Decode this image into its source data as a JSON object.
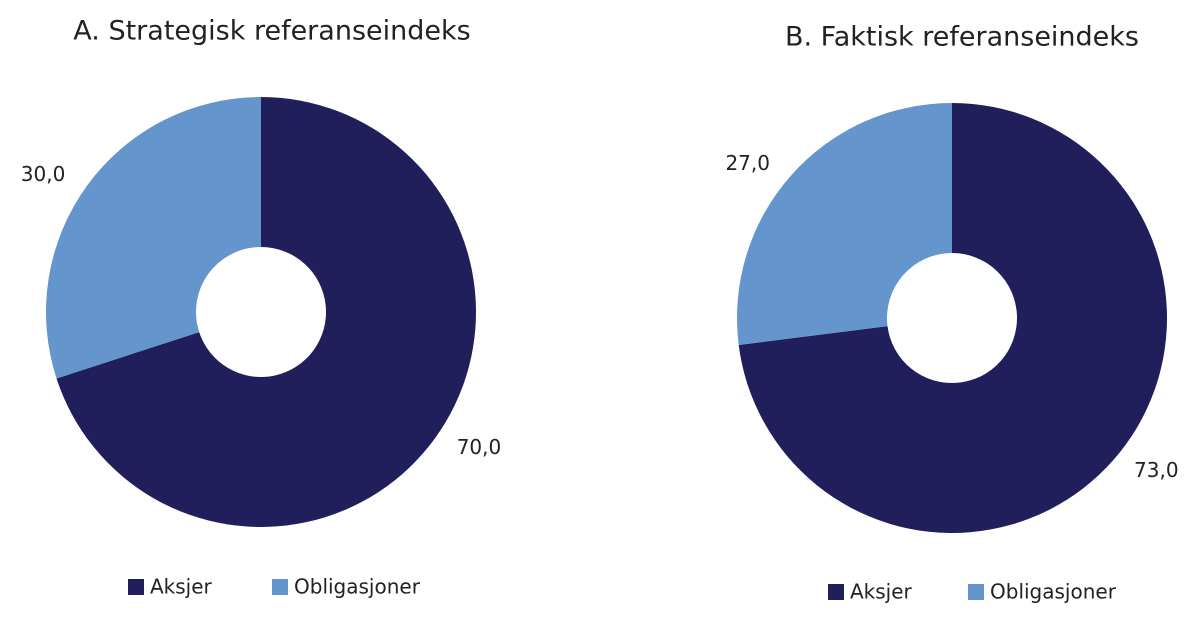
{
  "chart_data": [
    {
      "type": "pie",
      "title": "A. Strategisk referanseindeks",
      "categories": [
        "Aksjer",
        "Obligasjoner"
      ],
      "values": [
        70,
        30
      ],
      "value_labels": [
        "70,0",
        "30,0"
      ],
      "colors": [
        "#201f5c",
        "#6495cd"
      ],
      "donut": true
    },
    {
      "type": "pie",
      "title": "B. Faktisk referanseindeks",
      "categories": [
        "Aksjer",
        "Obligasjoner"
      ],
      "values": [
        73,
        27
      ],
      "value_labels": [
        "73,0",
        "27,0"
      ],
      "colors": [
        "#201f5c",
        "#6495cd"
      ],
      "donut": true
    }
  ]
}
